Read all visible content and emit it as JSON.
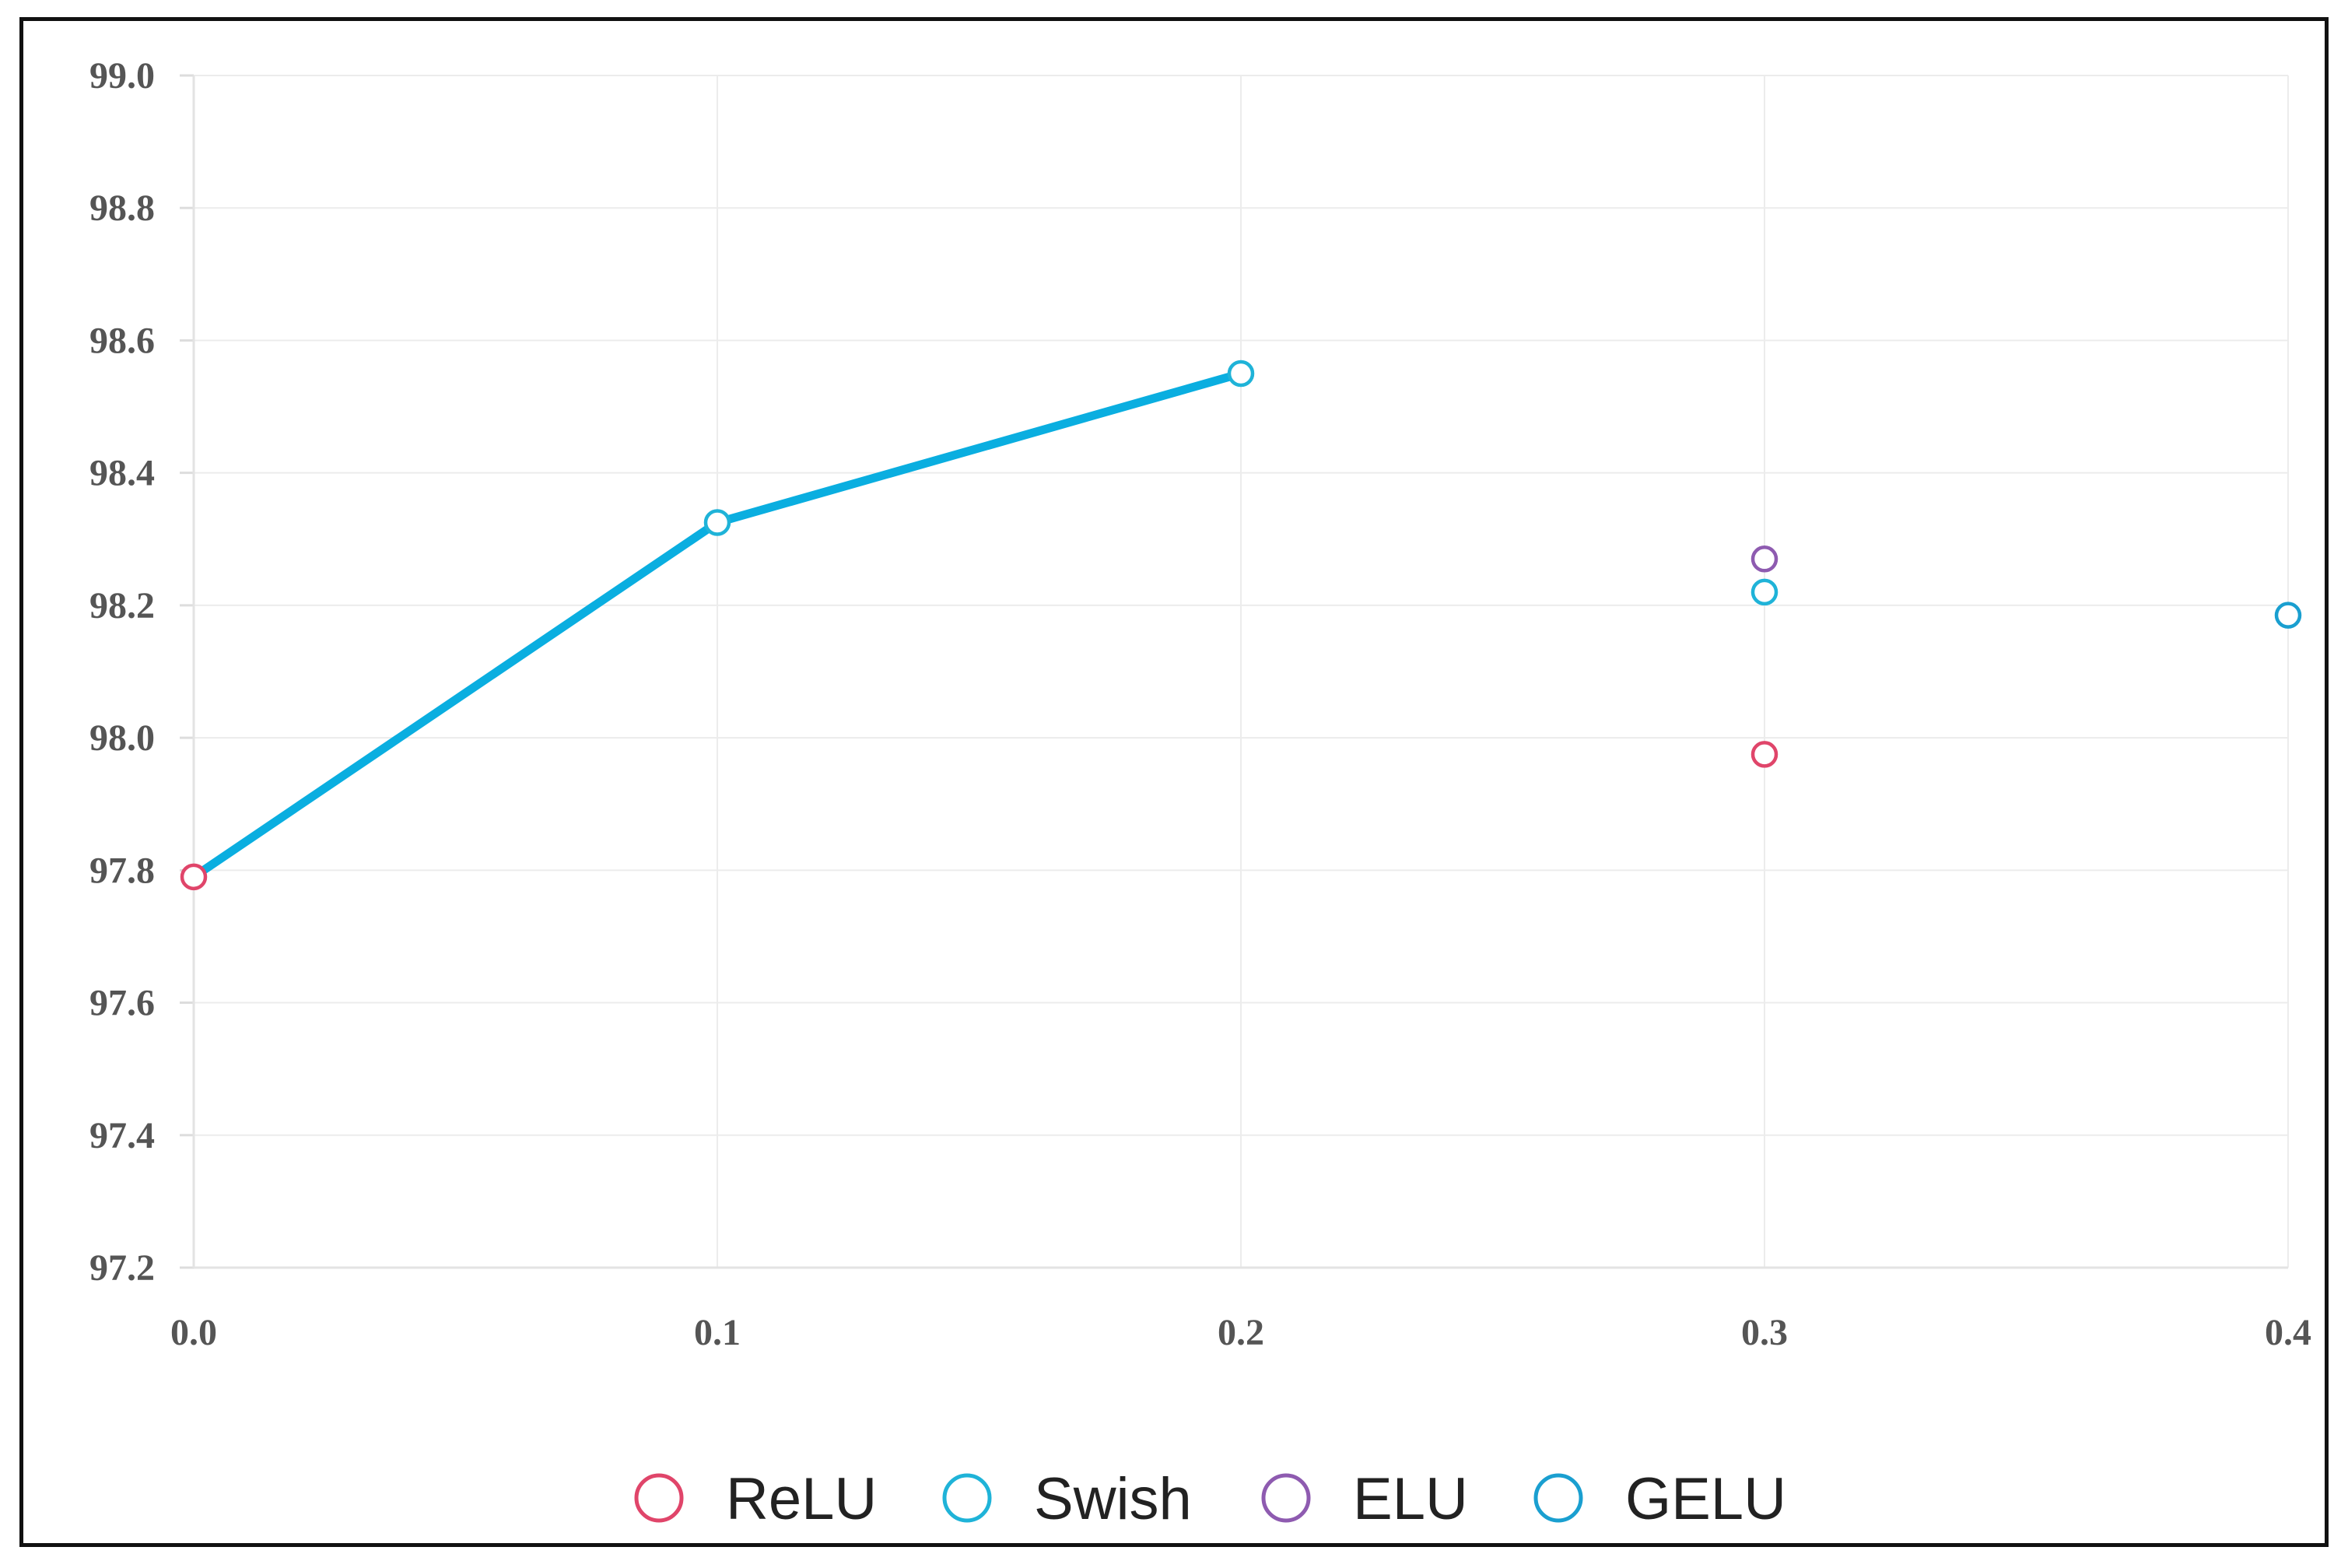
{
  "chart_data": {
    "type": "scatter",
    "title": "",
    "xlabel": "",
    "ylabel": "",
    "xlim": [
      0.0,
      0.4
    ],
    "ylim": [
      97.2,
      99.0
    ],
    "xticks": [
      "0.0",
      "0.1",
      "0.2",
      "0.3",
      "0.4"
    ],
    "yticks": [
      "97.2",
      "97.4",
      "97.6",
      "97.8",
      "98.0",
      "98.2",
      "98.4",
      "98.6",
      "98.8",
      "99.0"
    ],
    "grid": true,
    "legend_position": "bottom",
    "series": [
      {
        "name": "ReLU",
        "color": "#e0456a",
        "points": [
          {
            "x": 0.0,
            "y": 97.79
          },
          {
            "x": 0.3,
            "y": 97.975
          }
        ]
      },
      {
        "name": "Swish",
        "color": "#1fb3d8",
        "points": [
          {
            "x": 0.1,
            "y": 98.325
          },
          {
            "x": 0.2,
            "y": 98.55
          },
          {
            "x": 0.3,
            "y": 98.22
          }
        ]
      },
      {
        "name": "ELU",
        "color": "#8e5bb0",
        "points": [
          {
            "x": 0.3,
            "y": 98.27
          }
        ]
      },
      {
        "name": "GELU",
        "color": "#1a9fd0",
        "points": [
          {
            "x": 0.4,
            "y": 98.185
          }
        ]
      }
    ],
    "trend_line": {
      "color": "#0aaee0",
      "points": [
        {
          "x": 0.0,
          "y": 97.79
        },
        {
          "x": 0.1,
          "y": 98.325
        },
        {
          "x": 0.2,
          "y": 98.55
        }
      ]
    }
  }
}
